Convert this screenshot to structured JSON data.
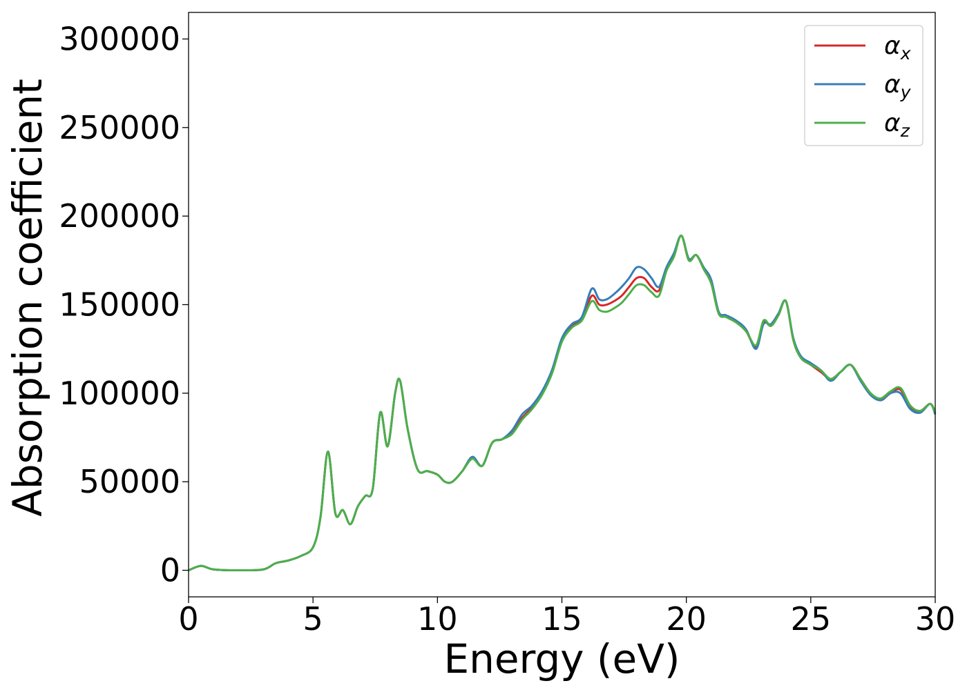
{
  "chart_data": {
    "type": "line",
    "title": "",
    "xlabel": "Energy (eV)",
    "ylabel": "Absorption coefficient",
    "xlim": [
      0,
      30
    ],
    "ylim": [
      -15000,
      315000
    ],
    "xticks": [
      0,
      5,
      10,
      15,
      20,
      25,
      30
    ],
    "xtick_labels": [
      "0",
      "5",
      "10",
      "15",
      "20",
      "25",
      "30"
    ],
    "yticks": [
      0,
      50000,
      100000,
      150000,
      200000,
      250000,
      300000
    ],
    "ytick_labels": [
      "0",
      "50000",
      "100000",
      "150000",
      "200000",
      "250000",
      "300000"
    ],
    "grid": false,
    "legend_position": "top-right",
    "series": [
      {
        "name": "α",
        "subscript": "x",
        "color": "#d62728",
        "x": [
          0,
          0.5,
          1,
          2,
          3,
          3.5,
          4,
          4.5,
          5,
          5.3,
          5.6,
          5.9,
          6.2,
          6.5,
          6.8,
          7.1,
          7.4,
          7.7,
          8,
          8.3,
          8.5,
          8.8,
          9.2,
          9.6,
          10,
          10.3,
          10.6,
          11,
          11.4,
          11.8,
          12.2,
          12.6,
          13,
          13.4,
          13.8,
          14.2,
          14.6,
          15,
          15.4,
          15.8,
          16.2,
          16.5,
          16.8,
          17.1,
          17.4,
          17.7,
          18,
          18.3,
          18.6,
          18.9,
          19.2,
          19.5,
          19.8,
          20.1,
          20.4,
          20.7,
          21,
          21.3,
          21.6,
          22,
          22.4,
          22.8,
          23.1,
          23.4,
          23.7,
          24,
          24.3,
          24.6,
          25,
          25.4,
          25.8,
          26.2,
          26.6,
          27,
          27.4,
          27.8,
          28.2,
          28.6,
          29,
          29.4,
          29.8,
          30
        ],
        "y": [
          0,
          2500,
          500,
          0,
          500,
          4000,
          5500,
          8000,
          13000,
          30000,
          67000,
          32000,
          34000,
          26000,
          36000,
          42000,
          46000,
          89000,
          70000,
          100000,
          107000,
          80000,
          57000,
          56000,
          54000,
          50000,
          50000,
          56000,
          64000,
          59000,
          72000,
          74000,
          78000,
          86000,
          92000,
          100000,
          112000,
          130000,
          138000,
          142000,
          155000,
          150000,
          150000,
          152000,
          155000,
          160000,
          165000,
          165000,
          160000,
          158000,
          170000,
          178000,
          189000,
          175000,
          178000,
          170000,
          162000,
          145000,
          143000,
          140000,
          135000,
          126000,
          140000,
          138000,
          144000,
          152000,
          130000,
          120000,
          116000,
          112000,
          108000,
          112000,
          116000,
          108000,
          100000,
          96000,
          100000,
          102000,
          92000,
          90000,
          94000,
          89000
        ]
      },
      {
        "name": "α",
        "subscript": "y",
        "color": "#377eb8",
        "x": [
          0,
          0.5,
          1,
          2,
          3,
          3.5,
          4,
          4.5,
          5,
          5.3,
          5.6,
          5.9,
          6.2,
          6.5,
          6.8,
          7.1,
          7.4,
          7.7,
          8,
          8.3,
          8.5,
          8.8,
          9.2,
          9.6,
          10,
          10.3,
          10.6,
          11,
          11.4,
          11.8,
          12.2,
          12.6,
          13,
          13.4,
          13.8,
          14.2,
          14.6,
          15,
          15.4,
          15.8,
          16.2,
          16.5,
          16.8,
          17.1,
          17.4,
          17.7,
          18,
          18.3,
          18.6,
          18.9,
          19.2,
          19.5,
          19.8,
          20.1,
          20.4,
          20.7,
          21,
          21.3,
          21.6,
          22,
          22.4,
          22.8,
          23.1,
          23.4,
          23.7,
          24,
          24.3,
          24.6,
          25,
          25.4,
          25.8,
          26.2,
          26.6,
          27,
          27.4,
          27.8,
          28.2,
          28.6,
          29,
          29.4,
          29.8,
          30
        ],
        "y": [
          0,
          2500,
          500,
          0,
          500,
          4000,
          5500,
          8000,
          13000,
          30000,
          67000,
          32000,
          34000,
          26000,
          36000,
          42000,
          46000,
          89000,
          70000,
          100000,
          107000,
          80000,
          57000,
          56000,
          54000,
          50000,
          50000,
          56000,
          64000,
          59000,
          72000,
          74000,
          79000,
          88000,
          93000,
          101000,
          113000,
          131000,
          139000,
          143000,
          159000,
          153000,
          153000,
          156000,
          160000,
          165000,
          171000,
          170000,
          165000,
          160000,
          171000,
          179000,
          189000,
          176000,
          178000,
          171000,
          164000,
          146000,
          144000,
          141000,
          136000,
          125000,
          139000,
          139000,
          145000,
          152000,
          131000,
          121000,
          117000,
          113000,
          107000,
          112000,
          116000,
          107000,
          99000,
          96000,
          100000,
          100000,
          91000,
          89000,
          94000,
          88000
        ]
      },
      {
        "name": "α",
        "subscript": "z",
        "color": "#4daf4a",
        "x": [
          0,
          0.5,
          1,
          2,
          3,
          3.5,
          4,
          4.5,
          5,
          5.3,
          5.6,
          5.9,
          6.2,
          6.5,
          6.8,
          7.1,
          7.4,
          7.7,
          8,
          8.3,
          8.5,
          8.8,
          9.2,
          9.6,
          10,
          10.3,
          10.6,
          11,
          11.4,
          11.8,
          12.2,
          12.6,
          13,
          13.4,
          13.8,
          14.2,
          14.6,
          15,
          15.4,
          15.8,
          16.2,
          16.5,
          16.8,
          17.1,
          17.4,
          17.7,
          18,
          18.3,
          18.6,
          18.9,
          19.2,
          19.5,
          19.8,
          20.1,
          20.4,
          20.7,
          21,
          21.3,
          21.6,
          22,
          22.4,
          22.8,
          23.1,
          23.4,
          23.7,
          24,
          24.3,
          24.6,
          25,
          25.4,
          25.8,
          26.2,
          26.6,
          27,
          27.4,
          27.8,
          28.2,
          28.6,
          29,
          29.4,
          29.8,
          30
        ],
        "y": [
          0,
          2500,
          500,
          0,
          500,
          4000,
          5500,
          8000,
          13000,
          30000,
          67000,
          32000,
          34000,
          26000,
          36000,
          42000,
          46000,
          89000,
          70000,
          100000,
          107000,
          80000,
          57000,
          56000,
          54000,
          50000,
          50000,
          56000,
          63000,
          59000,
          72000,
          74000,
          77000,
          85000,
          91000,
          99000,
          111000,
          129000,
          137000,
          141000,
          152000,
          147000,
          146000,
          148000,
          151000,
          156000,
          161000,
          161000,
          157000,
          155000,
          169000,
          177000,
          189000,
          175000,
          178000,
          170000,
          162000,
          145000,
          143000,
          140000,
          135000,
          127000,
          141000,
          138000,
          144000,
          152000,
          130000,
          120000,
          116000,
          113000,
          108000,
          112000,
          116000,
          108000,
          100000,
          97000,
          101000,
          103000,
          93000,
          90000,
          94000,
          89000
        ]
      }
    ]
  }
}
